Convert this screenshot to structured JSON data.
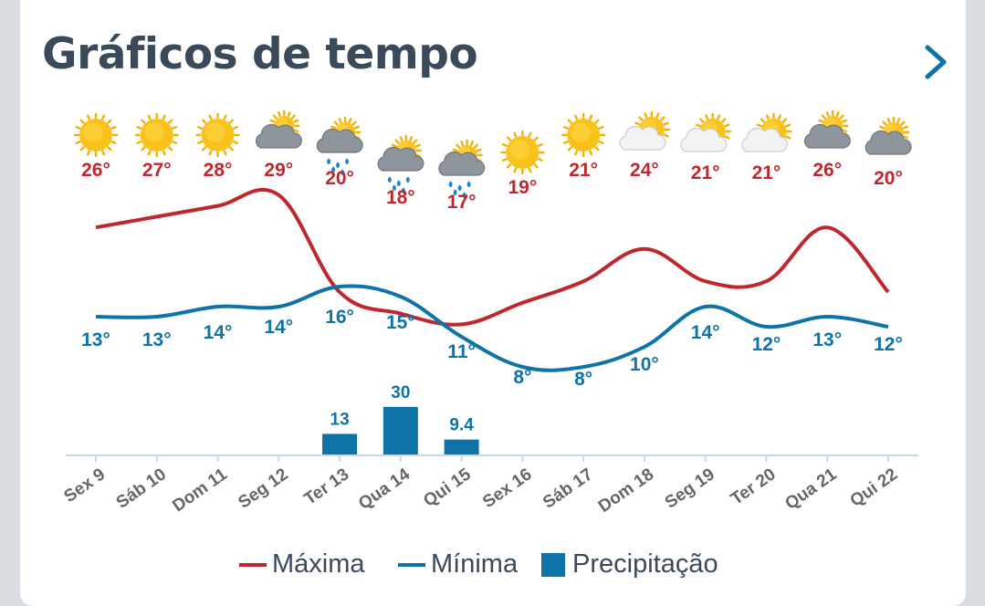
{
  "header": {
    "title": "Gráficos de tempo"
  },
  "icons": [
    "sun-icon",
    "sun-icon",
    "sun-icon",
    "cloudy-icon",
    "rain-cloud-icon",
    "rain-cloud-icon",
    "rain-cloud-icon",
    "sun-icon",
    "sun-icon",
    "partly-cloudy-icon",
    "partly-cloudy-icon",
    "partly-cloudy-icon",
    "cloudy-icon",
    "cloudy-icon"
  ],
  "colors": {
    "max": "#c0272d",
    "min": "#0e74a8",
    "precip": "#0e74a8",
    "axis": "#c7d9e6",
    "tick_text": "#666666",
    "title": "#3b4a5a"
  },
  "chart_data": {
    "type": "line",
    "categories": [
      "Sex 9",
      "Sáb 10",
      "Dom 11",
      "Seg 12",
      "Ter 13",
      "Qua 14",
      "Qui 15",
      "Sex 16",
      "Sáb 17",
      "Dom 18",
      "Seg 19",
      "Ter 20",
      "Qua 21",
      "Qui 22"
    ],
    "series": [
      {
        "name": "Máxima",
        "values": [
          26,
          27,
          28,
          29,
          20,
          18,
          17,
          19,
          21,
          24,
          21,
          21,
          26,
          20
        ],
        "labels": [
          "26°",
          "27°",
          "28°",
          "29°",
          "20°",
          "18°",
          "17°",
          "19°",
          "21°",
          "24°",
          "21°",
          "21°",
          "26°",
          "20°"
        ]
      },
      {
        "name": "Mínima",
        "values": [
          13,
          13,
          14,
          14,
          16,
          15,
          11,
          8,
          8,
          10,
          14,
          12,
          13,
          12
        ],
        "labels": [
          "13°",
          "13°",
          "14°",
          "14°",
          "16°",
          "15°",
          "11°",
          "8°",
          "8°",
          "10°",
          "14°",
          "12°",
          "13°",
          "12°"
        ]
      },
      {
        "name": "Precipitação",
        "type": "bar",
        "values": [
          null,
          null,
          null,
          null,
          13,
          30,
          9.4,
          null,
          null,
          null,
          null,
          null,
          null,
          null
        ],
        "labels": [
          "",
          "",
          "",
          "",
          "13",
          "30",
          "9.4",
          "",
          "",
          "",
          "",
          "",
          "",
          ""
        ]
      }
    ],
    "legend": {
      "position": "bottom",
      "items": [
        "Máxima",
        "Mínima",
        "Precipitação"
      ]
    }
  },
  "legend": {
    "max_label": "Máxima",
    "min_label": "Mínima",
    "precip_label": "Precipitação"
  }
}
